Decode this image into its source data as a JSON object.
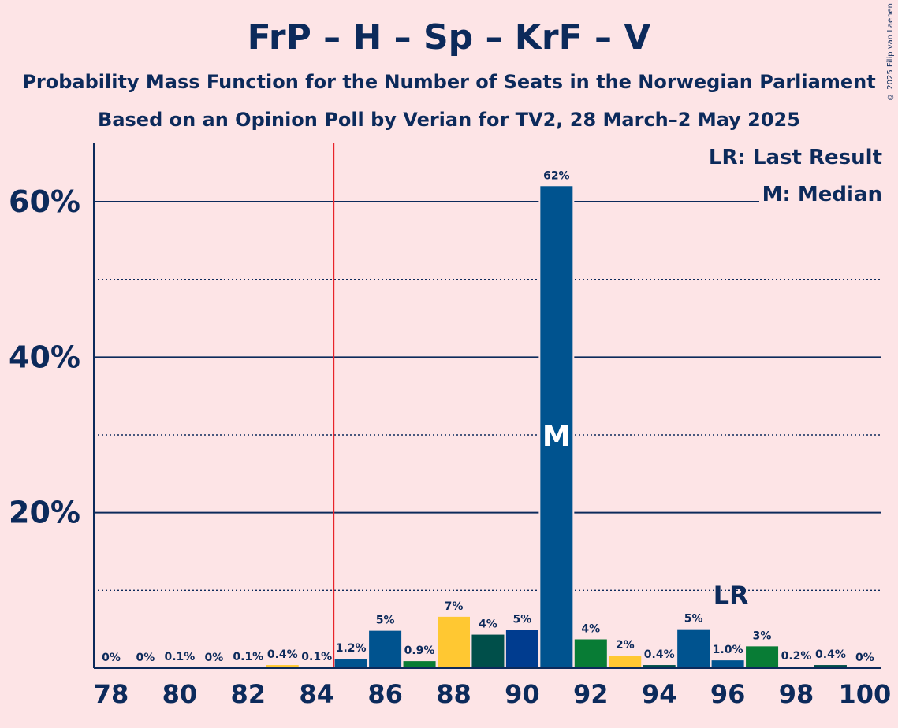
{
  "title": "FrP – H – Sp – KrF – V",
  "subtitle1": "Probability Mass Function for the Number of Seats in the Norwegian Parliament",
  "subtitle2": "Based on an Opinion Poll by Verian for TV2, 28 March–2 May 2025",
  "copyright": "© 2025 Filip van Laenen",
  "legend": {
    "lr": "LR: Last Result",
    "m": "M: Median"
  },
  "colors": {
    "background": "#fde4e6",
    "text": "#0c2a5b",
    "last_result_line": "#e8232a",
    "palette": [
      "#00538f",
      "#087c35",
      "#ffc832",
      "#004f4a",
      "#003c8f"
    ]
  },
  "chart_data": {
    "type": "bar",
    "x": [
      78,
      79,
      80,
      81,
      82,
      83,
      84,
      85,
      86,
      87,
      88,
      89,
      90,
      91,
      92,
      93,
      94,
      95,
      96,
      97,
      98,
      99,
      100
    ],
    "values": [
      0,
      0,
      0.1,
      0,
      0.1,
      0.4,
      0.1,
      1.2,
      4.8,
      0.9,
      6.6,
      4.3,
      4.9,
      62,
      3.7,
      1.6,
      0.4,
      5.0,
      1.0,
      2.8,
      0.2,
      0.4,
      0
    ],
    "labels": [
      "0%",
      "0%",
      "0.1%",
      "0%",
      "0.1%",
      "0.4%",
      "0.1%",
      "1.2%",
      "5%",
      "0.9%",
      "7%",
      "4%",
      "5%",
      "62%",
      "4%",
      "2%",
      "0.4%",
      "5%",
      "1.0%",
      "3%",
      "0.2%",
      "0.4%",
      "0%"
    ],
    "colors": [
      "#00538f",
      "#087c35",
      "#ffc832",
      "#004f4a",
      "#003c8f",
      "#ffc832",
      "#004f4a",
      "#00538f",
      "#00538f",
      "#087c35",
      "#ffc832",
      "#004f4a",
      "#003c8f",
      "#00538f",
      "#087c35",
      "#ffc832",
      "#004f4a",
      "#00538f",
      "#00538f",
      "#087c35",
      "#ffc832",
      "#004f4a",
      "#003c8f"
    ],
    "x_tick_labels": [
      "78",
      "80",
      "82",
      "84",
      "86",
      "88",
      "90",
      "92",
      "94",
      "96",
      "98",
      "100"
    ],
    "y_ticks": [
      20,
      40,
      60
    ],
    "y_tick_labels": [
      "20%",
      "40%",
      "60%"
    ],
    "y_minor_ticks": [
      10,
      30,
      50
    ],
    "ylim": [
      0,
      67.5
    ],
    "last_result_seat": 85,
    "last_result_label": "LR",
    "lr_label_seat": 96,
    "median_seat": 91,
    "median_label": "M"
  }
}
